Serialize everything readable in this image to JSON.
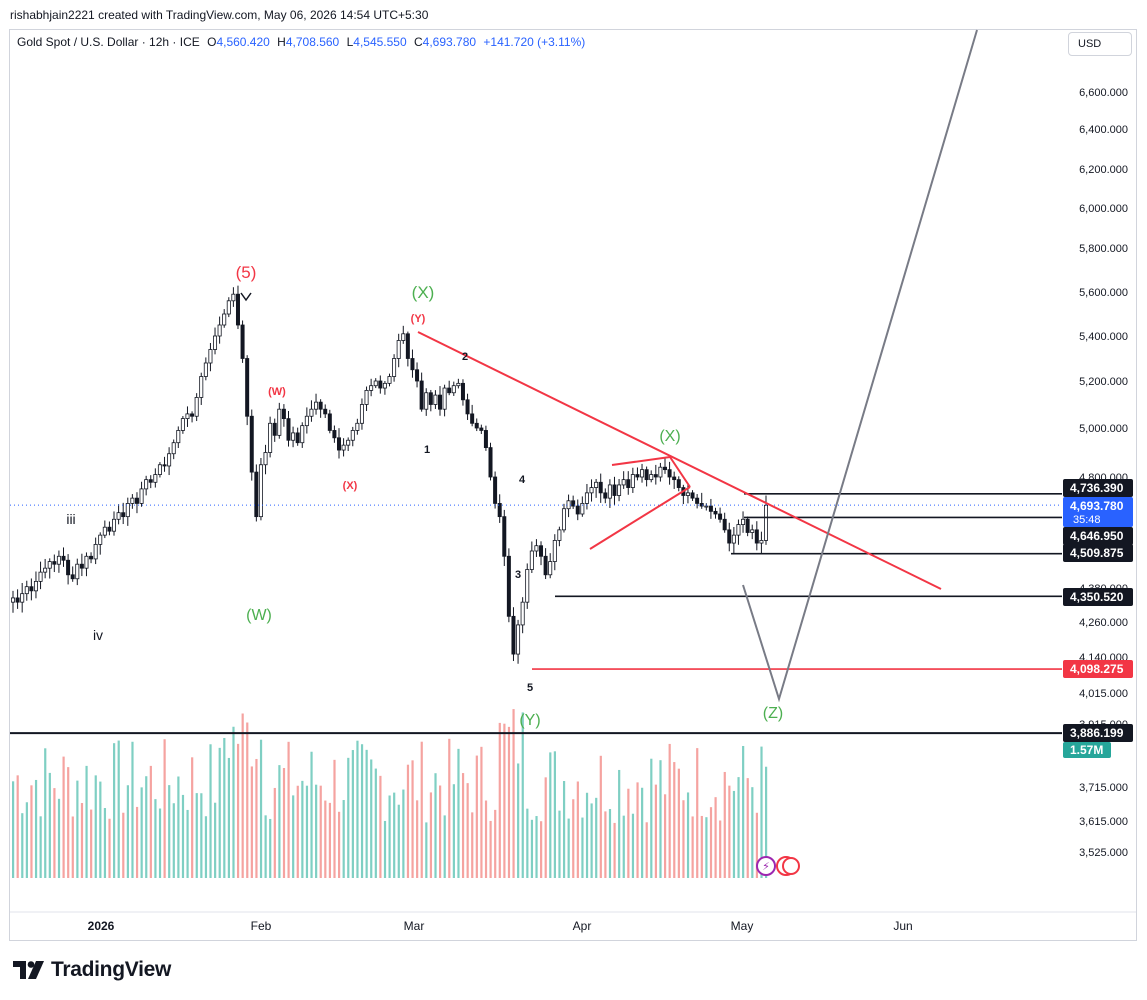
{
  "header": {
    "credit": "rishabhjain2221 created with TradingView.com, May 06, 2026 14:54 UTC+5:30",
    "symbol": "Gold Spot / U.S. Dollar · 12h · ICE",
    "open_label": "O",
    "open": "4,560.420",
    "high_label": "H",
    "high": "4,708.560",
    "low_label": "L",
    "low": "4,545.550",
    "close_label": "C",
    "close": "4,693.780",
    "change": "+141.720 (+3.11%)"
  },
  "currency": "USD",
  "brand": {
    "name": "TradingView",
    "icon": "tradingview-logo-icon"
  },
  "colors": {
    "up": "#26a69a",
    "down": "#ef5350",
    "candle": "#131722",
    "trendline": "#f23645",
    "projection": "#787b86",
    "wave_green": "#4caf50",
    "accent": "#2962ff"
  },
  "chart_data": {
    "type": "candlestick",
    "ylim": [
      3450,
      6800
    ],
    "y_axis_ticks": [
      "6,600.000",
      "6,400.000",
      "6,200.000",
      "6,000.000",
      "5,800.000",
      "5,600.000",
      "5,400.000",
      "5,200.000",
      "5,000.000",
      "4,800.000",
      "4,380.000",
      "4,260.000",
      "4,140.000",
      "4,015.000",
      "3,915.000",
      "3,715.000",
      "3,615.000",
      "3,525.000"
    ],
    "x_axis_ticks": [
      "2026",
      "Feb",
      "Mar",
      "Apr",
      "May",
      "Jun"
    ],
    "price_tags": [
      {
        "label": "4,736.390",
        "style": "black"
      },
      {
        "label": "4,693.780",
        "style": "blue",
        "sub": "35:48"
      },
      {
        "label": "4,646.950",
        "style": "black"
      },
      {
        "label": "4,509.875",
        "style": "black"
      },
      {
        "label": "4,350.520",
        "style": "black"
      },
      {
        "label": "4,098.275",
        "style": "red"
      },
      {
        "label": "3,886.199",
        "style": "black"
      },
      {
        "label": "1.57M",
        "style": "green"
      }
    ],
    "levels": [
      4736.39,
      4646.95,
      4509.875,
      4350.52,
      4098.275,
      3886.199
    ],
    "last_price": 4693.78,
    "wave_labels": [
      {
        "text": "(5)",
        "color": "red"
      },
      {
        "text": "(X)",
        "color": "green"
      },
      {
        "text": "(Y)",
        "color": "red"
      },
      {
        "text": "(W)",
        "color": "red"
      },
      {
        "text": "(X)",
        "color": "red"
      },
      {
        "text": "(W)",
        "color": "green"
      },
      {
        "text": "(X)",
        "color": "green"
      },
      {
        "text": "(Y)",
        "color": "green"
      },
      {
        "text": "(Z)",
        "color": "green"
      },
      {
        "text": "iii",
        "color": "black"
      },
      {
        "text": "iv",
        "color": "black"
      },
      {
        "text": "1",
        "color": "black"
      },
      {
        "text": "2",
        "color": "black"
      },
      {
        "text": "3",
        "color": "black"
      },
      {
        "text": "4",
        "color": "black"
      },
      {
        "text": "5",
        "color": "black"
      }
    ],
    "series": [
      {
        "values": [
          4345,
          4330,
          4360,
          4385,
          4370,
          4405,
          4440,
          4455,
          4480,
          4470,
          4500,
          4485,
          4430,
          4415,
          4470,
          4455,
          4500,
          4490,
          4545,
          4580,
          4610,
          4595,
          4640,
          4665,
          4650,
          4700,
          4720,
          4700,
          4755,
          4790,
          4780,
          4810,
          4850,
          4845,
          4895,
          4940,
          4990,
          5040,
          5060,
          5050,
          5130,
          5220,
          5280,
          5340,
          5400,
          5450,
          5500,
          5560,
          5590,
          5450,
          5300,
          5050,
          4820,
          4650,
          4850,
          4900,
          5020,
          4970,
          5080,
          5040,
          4950,
          4980,
          4940,
          5010,
          5050,
          5080,
          5110,
          5080,
          5060,
          4990,
          4960,
          4910,
          4930,
          4950,
          4990,
          5020,
          5100,
          5160,
          5180,
          5200,
          5170,
          5190,
          5220,
          5300,
          5380,
          5410,
          5300,
          5250,
          5200,
          5080,
          5150,
          5100,
          5140,
          5080,
          5170,
          5150,
          5180,
          5190,
          5120,
          5060,
          5020,
          5000,
          4990,
          4920,
          4800,
          4700,
          4650,
          4500,
          4280,
          4150,
          4250,
          4330,
          4450,
          4520,
          4540,
          4500,
          4430,
          4480,
          4560,
          4600,
          4680,
          4710,
          4690,
          4660,
          4700,
          4740,
          4760,
          4780,
          4740,
          4720,
          4770,
          4730,
          4770,
          4790,
          4760,
          4810,
          4800,
          4830,
          4790,
          4810,
          4800,
          4840,
          4830,
          4800,
          4790,
          4760,
          4730,
          4740,
          4720,
          4700,
          4690,
          4690,
          4670,
          4660,
          4640,
          4600,
          4550,
          4580,
          4620,
          4640,
          4590,
          4600,
          4550,
          4560,
          4693
        ]
      }
    ]
  }
}
